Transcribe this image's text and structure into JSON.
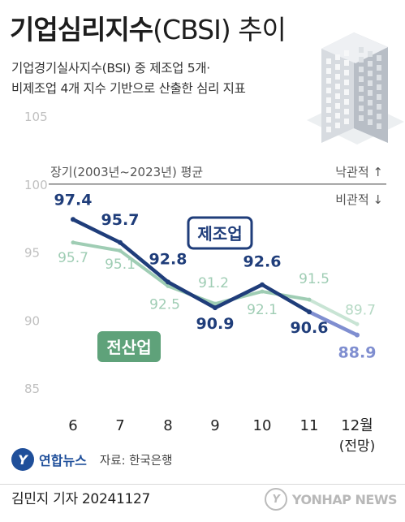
{
  "header": {
    "title_main": "기업심리지수",
    "title_paren": "(CBSI) 추이",
    "subtitle_line1": "기업경기실사지수(BSI) 중 제조업 5개·",
    "subtitle_line2": "비제조업 4개 지수 기반으로 산출한 심리 지표"
  },
  "chart_data": {
    "type": "line",
    "categories": [
      "6",
      "7",
      "8",
      "9",
      "10",
      "11",
      "12월"
    ],
    "category_sublabels": [
      "",
      "",
      "",
      "",
      "",
      "",
      "(전망)"
    ],
    "ylim": [
      85,
      105
    ],
    "yticks": [
      85,
      90,
      95,
      100,
      105
    ],
    "grid": false,
    "series": [
      {
        "name": "제조업",
        "values": [
          97.4,
          95.7,
          92.8,
          90.9,
          92.6,
          90.6,
          88.9
        ],
        "color": "#1f3d7a",
        "forecast_color": "#7f8ed0"
      },
      {
        "name": "전산업",
        "values": [
          95.7,
          95.1,
          92.5,
          91.2,
          92.1,
          91.5,
          89.7
        ],
        "color": "#9fcdb4",
        "forecast_color": "#c8e4d4"
      }
    ],
    "value_labels": {
      "제조업": [
        "97.4",
        "95.7",
        "92.8",
        "90.9",
        "92.6",
        "90.6",
        "88.9"
      ],
      "전산업": [
        "95.7",
        "95.1",
        "92.5",
        "91.2",
        "92.1",
        "91.5",
        "89.7"
      ]
    },
    "reference_line": {
      "value": 100,
      "label": "장기(2003년~2023년) 평균",
      "above_label": "낙관적 ↑",
      "below_label": "비관적 ↓"
    }
  },
  "footer": {
    "brand": "연합뉴스",
    "brand_mark": "Y",
    "source": "자료: 한국은행",
    "reporter": "김민지 기자  20241127",
    "watermark": "YONHAP NEWS",
    "watermark_mark": "Y"
  },
  "colors": {
    "manufacturing": "#1f3d7a",
    "all_industry": "#9fcdb4",
    "all_industry_label_bg": "#5fa27a",
    "axis_text": "#c0c0c0"
  },
  "icons": {
    "illustration": "office-building-icon"
  }
}
